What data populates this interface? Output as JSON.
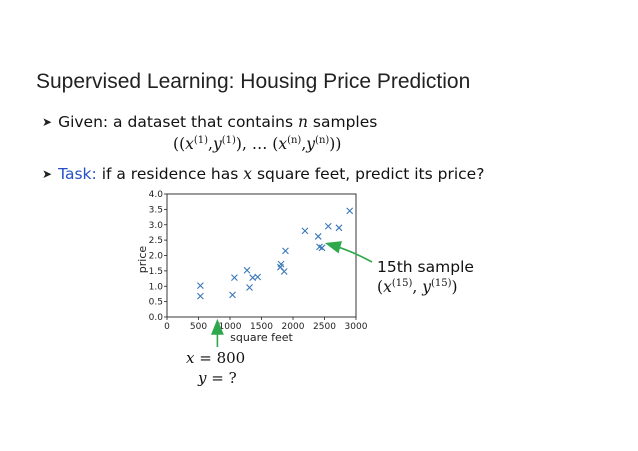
{
  "slide": {
    "title": "Supervised Learning: Housing Price Prediction"
  },
  "bullets": {
    "given_text": "Given: a dataset that contains",
    "given_var": "n",
    "given_tail": "samples",
    "task_label": "Task:",
    "task_text_1": "if a residence has",
    "task_var": "x",
    "task_text_2": "square feet, predict its price?"
  },
  "formula": {
    "x": "x",
    "y": "y",
    "sup_1": "(1)",
    "sup_n": "(n)",
    "ellipsis": "…"
  },
  "annotation": {
    "label": "15th sample",
    "sup": "(15)",
    "x": "x",
    "y": "y"
  },
  "query": {
    "x_var": "x",
    "x_value": "800",
    "y_var": "y",
    "y_value": "?"
  },
  "colors": {
    "marker": "#3a78b8",
    "annotation_arrow": "#2ea84a",
    "task_label": "#2550c8"
  },
  "chart_data": {
    "type": "scatter",
    "xlabel": "square feet",
    "ylabel": "price",
    "xlim": [
      0,
      3000
    ],
    "ylim": [
      0,
      4.0
    ],
    "xticks": [
      0,
      500,
      1000,
      1500,
      2000,
      2500,
      3000
    ],
    "yticks": [
      0.0,
      0.5,
      1.0,
      1.5,
      2.0,
      2.5,
      3.0,
      3.5,
      4.0
    ],
    "xtick_labels": [
      "0",
      "500",
      "1000",
      "1500",
      "2000",
      "2500",
      "3000"
    ],
    "ytick_labels": [
      "0.0",
      "0.5",
      "1.0",
      "1.5",
      "2.0",
      "2.5",
      "3.0",
      "3.5",
      "4.0"
    ],
    "marker": "x",
    "grid": false,
    "points": [
      {
        "x": 530,
        "y": 1.02
      },
      {
        "x": 530,
        "y": 0.68
      },
      {
        "x": 1040,
        "y": 0.72
      },
      {
        "x": 1070,
        "y": 1.28
      },
      {
        "x": 1270,
        "y": 1.52
      },
      {
        "x": 1310,
        "y": 0.96
      },
      {
        "x": 1360,
        "y": 1.28
      },
      {
        "x": 1440,
        "y": 1.3
      },
      {
        "x": 1800,
        "y": 1.62
      },
      {
        "x": 1810,
        "y": 1.72
      },
      {
        "x": 1860,
        "y": 1.48
      },
      {
        "x": 1880,
        "y": 2.15
      },
      {
        "x": 2190,
        "y": 2.8
      },
      {
        "x": 2400,
        "y": 2.62
      },
      {
        "x": 2420,
        "y": 2.28
      },
      {
        "x": 2460,
        "y": 2.25
      },
      {
        "x": 2560,
        "y": 2.95
      },
      {
        "x": 2730,
        "y": 2.9
      },
      {
        "x": 2900,
        "y": 3.45
      }
    ],
    "annotated_point_index": 15,
    "query_x": 800
  }
}
